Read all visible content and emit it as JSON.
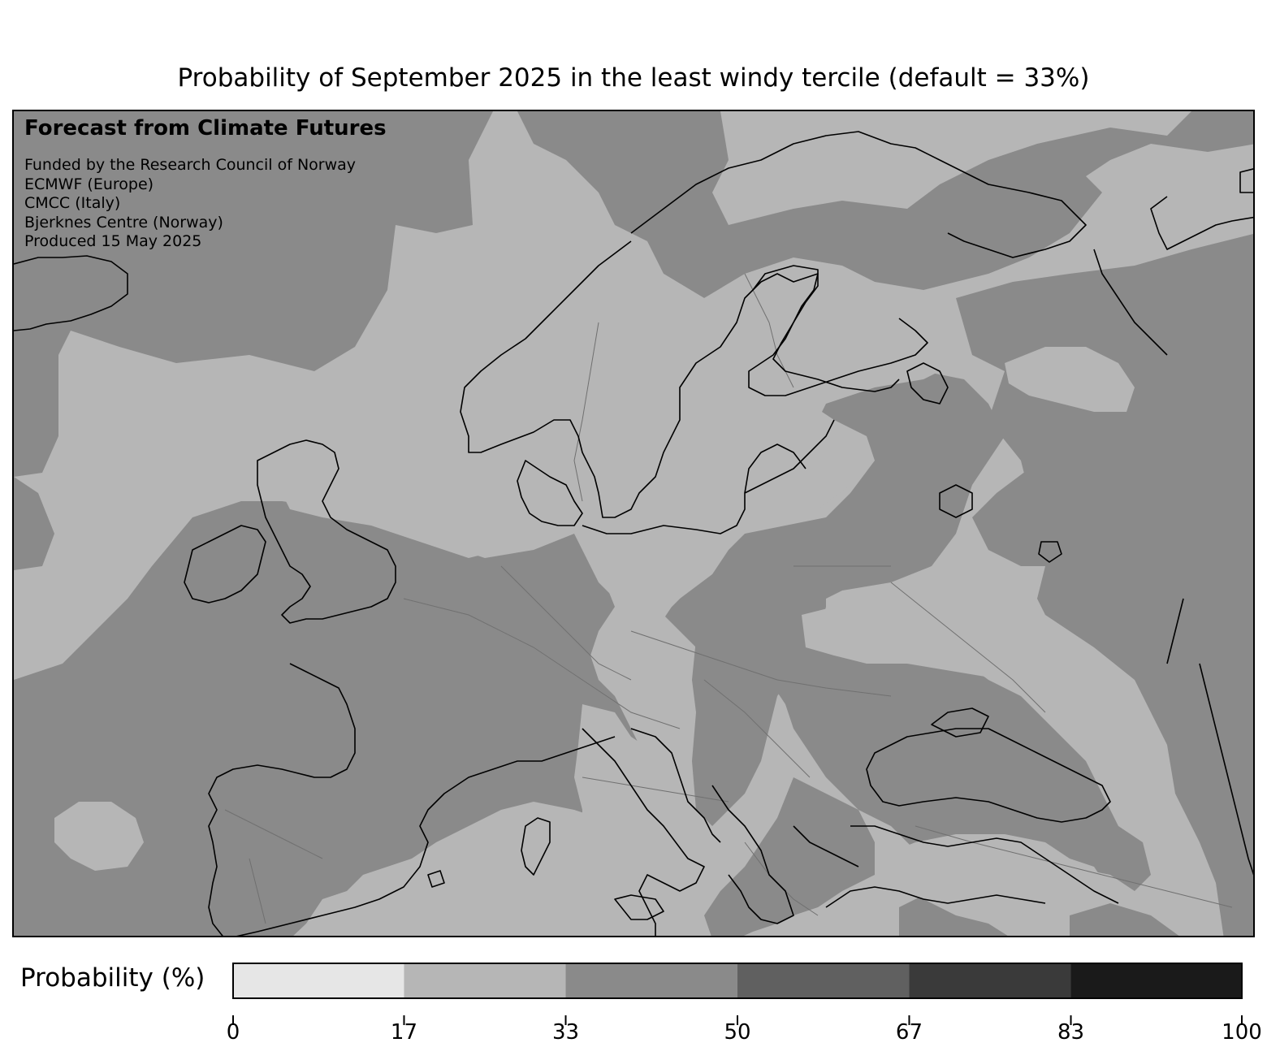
{
  "title": "Probability of September 2025 in the least windy tercile (default = 33%)",
  "info": {
    "heading": "Forecast from Climate Futures",
    "lines": [
      "Funded by the Research Council of Norway",
      "ECMWF (Europe)",
      "CMCC (Italy)",
      "Bjerknes Centre (Norway)",
      "Produced 15 May 2025"
    ]
  },
  "colorbar": {
    "label": "Probability (%)",
    "ticks": [
      "0",
      "17",
      "33",
      "50",
      "67",
      "83",
      "100"
    ],
    "bins": [
      {
        "from": 0,
        "to": 17,
        "color": "#e6e6e6"
      },
      {
        "from": 17,
        "to": 33,
        "color": "#b6b6b6"
      },
      {
        "from": 33,
        "to": 50,
        "color": "#8a8a8a"
      },
      {
        "from": 50,
        "to": 67,
        "color": "#606060"
      },
      {
        "from": 67,
        "to": 83,
        "color": "#3a3a3a"
      },
      {
        "from": 83,
        "to": 100,
        "color": "#1a1a1a"
      }
    ]
  },
  "map": {
    "region": "Europe",
    "field_colors": {
      "low": "#b6b6b6",
      "high": "#8a8a8a"
    },
    "coastline_color": "#000000",
    "border_color": "#707070"
  }
}
